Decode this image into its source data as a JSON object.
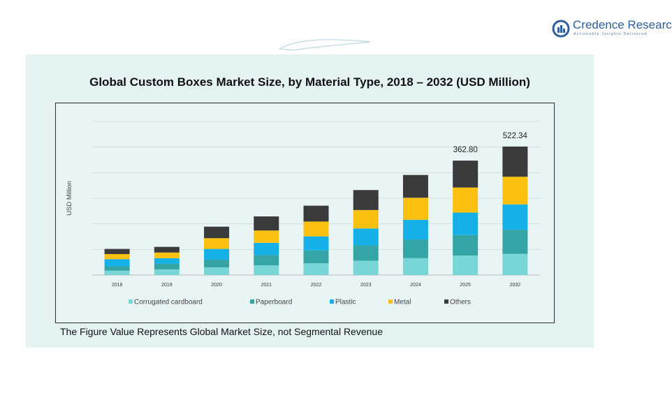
{
  "brand": {
    "name": "Credence Research",
    "tagline": "Actionable Insights Delivered"
  },
  "footnote": "The Figure Value Represents Global Market Size, not Segmental Revenue",
  "colors": {
    "Corrugated cardboard": "#79d6d6",
    "Paperboard": "#35a4a4",
    "Plastic": "#16b0e8",
    "Metal": "#fcc010",
    "Others": "#3a3a3a",
    "panel": "#e4f2f2"
  },
  "chart_data": {
    "type": "bar",
    "stacked": true,
    "title": "Global Custom Boxes Market Size, by Material Type, 2018 – 2032 (USD Million)",
    "ylabel": "USD Million",
    "xlabel": "",
    "ylim": [
      0,
      600
    ],
    "grid": true,
    "legend_position": "bottom",
    "categories": [
      "2018",
      "2019",
      "2020",
      "2021",
      "2022",
      "2023",
      "2024",
      "2025",
      "2032"
    ],
    "series": [
      {
        "name": "Corrugated cardboard",
        "values": [
          17,
          22,
          30,
          38,
          46,
          56,
          66,
          76,
          83
        ]
      },
      {
        "name": "Paperboard",
        "values": [
          17,
          22,
          30,
          40,
          50,
          60,
          73,
          80,
          94
        ]
      },
      {
        "name": "Plastic",
        "values": [
          28,
          22,
          42,
          48,
          55,
          66,
          77,
          88,
          99
        ]
      },
      {
        "name": "Metal",
        "values": [
          20,
          22,
          42,
          48,
          58,
          72,
          86,
          98,
          108
        ]
      },
      {
        "name": "Others",
        "values": [
          20,
          22,
          45,
          55,
          62,
          78,
          89,
          105,
          118
        ]
      }
    ],
    "data_labels": {
      "2025": "362.80",
      "2032": "522.34"
    }
  }
}
